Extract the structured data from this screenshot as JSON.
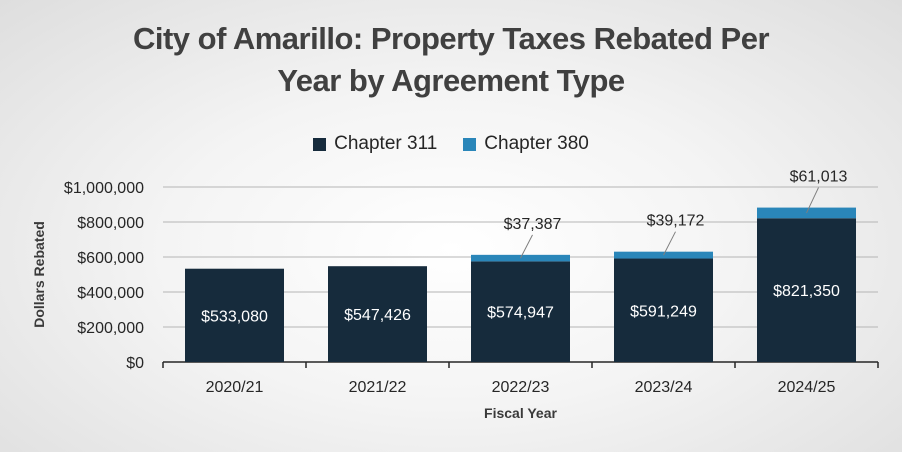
{
  "chart_data": {
    "type": "bar",
    "stacked": true,
    "title_line1": "City of Amarillo: Property Taxes Rebated Per",
    "title_line2": "Year by Agreement Type",
    "xlabel": "Fiscal Year",
    "ylabel": "Dollars Rebated",
    "categories": [
      "2020/21",
      "2021/22",
      "2022/23",
      "2023/24",
      "2024/25"
    ],
    "ylim": [
      0,
      1000000
    ],
    "yticks": [
      0,
      200000,
      400000,
      600000,
      800000,
      1000000
    ],
    "ytick_labels": [
      "$0",
      "$200,000",
      "$400,000",
      "$600,000",
      "$800,000",
      "$1,000,000"
    ],
    "grid": true,
    "legend_position": "top",
    "series": [
      {
        "name": "Chapter 311",
        "color": "#162b3c",
        "values": [
          533080,
          547426,
          574947,
          591249,
          821350
        ],
        "labels": [
          "$533,080",
          "$547,426",
          "$574,947",
          "$591,249",
          "$821,350"
        ],
        "label_position": "inside"
      },
      {
        "name": "Chapter 380",
        "color": "#2a86b9",
        "values": [
          0,
          0,
          37387,
          39172,
          61013
        ],
        "labels": [
          "",
          "",
          "$37,387",
          "$39,172",
          "$61,013"
        ],
        "label_position": "callout"
      }
    ]
  }
}
